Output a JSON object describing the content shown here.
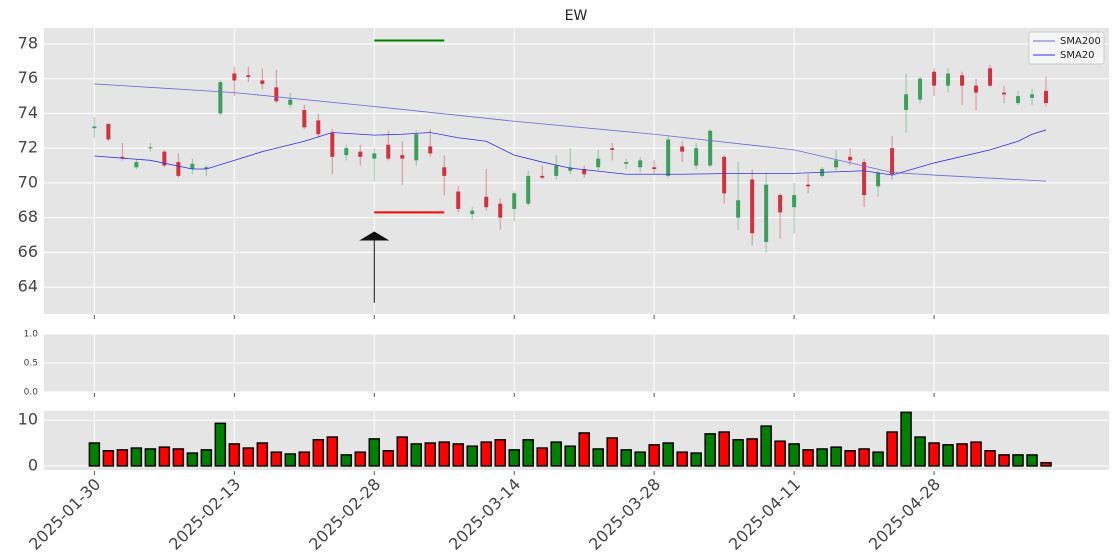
{
  "chart_data": [
    {
      "type": "candlestick",
      "title": "EW",
      "open": [
        73.15,
        73.4,
        71.5,
        70.9,
        72.0,
        71.8,
        71.2,
        70.8,
        70.8,
        74.0,
        76.3,
        76.2,
        75.9,
        75.5,
        74.5,
        74.2,
        73.6,
        72.9,
        71.6,
        71.8,
        71.4,
        72.2,
        71.6,
        71.3,
        72.1,
        70.9,
        69.5,
        68.2,
        69.2,
        68.8,
        68.5,
        68.8,
        70.4,
        70.4,
        70.7,
        70.8,
        70.9,
        72.0,
        71.1,
        70.9,
        70.9,
        70.4,
        72.1,
        71.0,
        71.0,
        71.5,
        68.0,
        70.2,
        66.6,
        69.3,
        68.6,
        69.9,
        70.4,
        70.9,
        71.5,
        71.2,
        69.8,
        72.0,
        74.2,
        74.8,
        76.4,
        75.6,
        76.2,
        75.6,
        76.6,
        75.2,
        74.6,
        74.9,
        75.3
      ],
      "high": [
        73.8,
        73.4,
        72.3,
        71.4,
        72.3,
        71.9,
        71.7,
        71.4,
        71.0,
        75.9,
        76.7,
        76.7,
        76.6,
        76.5,
        75.2,
        74.5,
        74.0,
        73.1,
        72.2,
        72.2,
        72.0,
        73.0,
        72.4,
        73.0,
        73.1,
        71.6,
        69.8,
        68.6,
        70.8,
        69.1,
        69.5,
        70.7,
        71.0,
        71.6,
        72.0,
        71.0,
        71.9,
        72.3,
        71.4,
        71.5,
        71.3,
        72.7,
        72.4,
        72.3,
        73.1,
        71.6,
        71.2,
        70.8,
        70.6,
        69.4,
        70.0,
        70.5,
        70.9,
        71.9,
        72.0,
        71.4,
        70.7,
        72.7,
        76.3,
        76.1,
        76.6,
        76.6,
        76.4,
        76.0,
        76.8,
        75.6,
        75.3,
        75.4,
        76.1
      ],
      "low": [
        72.6,
        72.4,
        71.3,
        70.8,
        71.8,
        70.9,
        70.3,
        70.5,
        70.4,
        73.9,
        75.0,
        75.8,
        75.4,
        74.6,
        74.3,
        73.1,
        72.6,
        70.5,
        71.3,
        71.0,
        70.1,
        71.3,
        69.9,
        71.0,
        71.5,
        69.3,
        68.3,
        67.9,
        68.4,
        67.3,
        67.8,
        68.7,
        70.2,
        70.2,
        70.5,
        70.3,
        70.7,
        71.3,
        70.8,
        70.6,
        70.5,
        70.3,
        71.2,
        70.8,
        70.9,
        68.8,
        67.3,
        66.4,
        66.0,
        66.8,
        67.1,
        69.4,
        70.3,
        70.7,
        71.0,
        68.6,
        69.2,
        70.2,
        72.9,
        74.6,
        75.0,
        75.2,
        74.5,
        74.2,
        75.5,
        74.6,
        74.5,
        74.5,
        74.4
      ],
      "close": [
        73.25,
        72.5,
        71.4,
        71.2,
        72.05,
        71.0,
        70.4,
        71.1,
        70.9,
        75.8,
        75.9,
        76.1,
        75.7,
        74.7,
        74.8,
        73.2,
        72.8,
        71.5,
        72.0,
        71.5,
        71.7,
        71.4,
        71.4,
        72.8,
        71.7,
        70.4,
        68.5,
        68.4,
        68.6,
        68.0,
        69.4,
        70.4,
        70.3,
        71.0,
        70.9,
        70.5,
        71.4,
        71.9,
        71.2,
        71.3,
        70.8,
        72.5,
        71.8,
        72.0,
        73.0,
        69.4,
        69.0,
        67.1,
        69.9,
        68.3,
        69.3,
        69.8,
        70.8,
        71.3,
        71.3,
        69.3,
        70.6,
        70.5,
        75.1,
        76.0,
        75.6,
        76.3,
        75.6,
        75.2,
        75.6,
        75.1,
        75.0,
        75.1,
        74.6
      ],
      "up_color": "#3d9f5d",
      "down_color": "#d0333f",
      "series": [
        {
          "name": "SMA200",
          "color": "#6a6ad8",
          "x": [
            0,
            10,
            20,
            30,
            40,
            50,
            57,
            60,
            68
          ],
          "values": [
            75.7,
            75.2,
            74.4,
            73.55,
            72.8,
            71.9,
            70.6,
            70.45,
            70.1
          ]
        },
        {
          "name": "SMA20",
          "color": "#3030f0",
          "x": [
            0,
            4,
            7,
            8,
            10,
            12,
            15,
            17,
            20,
            22,
            24,
            26,
            28,
            30,
            32,
            34,
            38,
            42,
            46,
            50,
            55,
            57,
            60,
            64,
            66,
            67,
            68
          ],
          "values": [
            71.55,
            71.3,
            70.8,
            70.8,
            71.3,
            71.8,
            72.4,
            72.9,
            72.75,
            72.8,
            72.9,
            72.6,
            72.4,
            71.6,
            71.2,
            70.85,
            70.5,
            70.5,
            70.55,
            70.55,
            70.7,
            70.45,
            71.15,
            71.9,
            72.4,
            72.8,
            73.05
          ]
        }
      ],
      "hlines": [
        {
          "value": 78.2,
          "x": [
            20,
            25
          ],
          "color": "#008000"
        },
        {
          "value": 68.3,
          "x": [
            20,
            25
          ],
          "color": "#ff0000"
        }
      ],
      "arrow": {
        "x": 20,
        "from": 63.1,
        "to": 67.2
      },
      "legend": "upper right",
      "grid": true,
      "ylim": [
        62.45,
        78.92
      ],
      "yticks": [
        64,
        66,
        68,
        70,
        72,
        74,
        76,
        78
      ]
    },
    {
      "type": "empty",
      "ylim": [
        0,
        1
      ],
      "yticks": [
        {
          "value": 0,
          "label": "0.0"
        },
        {
          "value": 0.5,
          "label": "0.5"
        },
        {
          "value": 1,
          "label": "1.0"
        }
      ],
      "grid": true
    },
    {
      "type": "volume",
      "values": [
        5.0,
        3.3,
        3.5,
        3.9,
        3.7,
        4.1,
        3.7,
        2.8,
        3.5,
        9.3,
        4.8,
        3.9,
        5.0,
        3.0,
        2.6,
        3.0,
        5.7,
        6.3,
        2.4,
        3.0,
        5.9,
        3.3,
        6.3,
        4.8,
        5.0,
        5.2,
        4.8,
        4.3,
        5.2,
        5.7,
        3.5,
        5.7,
        3.9,
        5.2,
        4.3,
        7.2,
        3.7,
        6.1,
        3.5,
        3.0,
        4.6,
        5.0,
        3.0,
        2.8,
        7.0,
        7.4,
        5.7,
        5.9,
        8.7,
        5.4,
        4.8,
        3.5,
        3.7,
        4.1,
        3.3,
        3.7,
        3.0,
        7.4,
        11.7,
        6.3,
        5.0,
        4.6,
        4.8,
        5.2,
        3.3,
        2.4,
        2.4,
        2.4,
        0.7
      ],
      "up_color": "#008000",
      "down_color": "#ff0000",
      "categories": [
        "2025-01-30",
        null,
        null,
        null,
        null,
        null,
        null,
        null,
        null,
        null,
        "2025-02-13",
        null,
        null,
        null,
        null,
        null,
        null,
        null,
        null,
        null,
        "2025-02-28",
        null,
        null,
        null,
        null,
        null,
        null,
        null,
        null,
        null,
        "2025-03-14",
        null,
        null,
        null,
        null,
        null,
        null,
        null,
        null,
        null,
        "2025-03-28",
        null,
        null,
        null,
        null,
        null,
        null,
        null,
        null,
        null,
        "2025-04-11",
        null,
        null,
        null,
        null,
        null,
        null,
        null,
        null,
        null,
        "2025-04-28",
        null,
        null,
        null,
        null,
        null,
        null,
        null,
        null
      ],
      "xlim": [
        -3.6,
        72.5
      ],
      "ylim": [
        -0.9,
        12
      ],
      "yticks": [
        0,
        10
      ],
      "grid": true
    }
  ]
}
